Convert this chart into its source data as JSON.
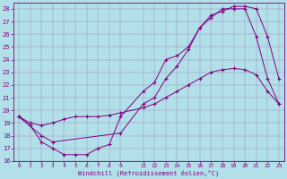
{
  "title": "",
  "xlabel": "Windchill (Refroidissement éolien,°C)",
  "ylabel": "",
  "bg_color": "#b2e0e8",
  "line_color": "#800080",
  "grid_color": "#800080",
  "xlim": [
    -0.5,
    23.5
  ],
  "ylim": [
    16,
    28.5
  ],
  "xticks": [
    0,
    1,
    2,
    3,
    4,
    5,
    6,
    7,
    8,
    9,
    11,
    12,
    13,
    14,
    15,
    16,
    17,
    18,
    19,
    20,
    21,
    22,
    23
  ],
  "yticks": [
    16,
    17,
    18,
    19,
    20,
    21,
    22,
    23,
    24,
    25,
    26,
    27,
    28
  ],
  "series1": [
    [
      0,
      19.5
    ],
    [
      1,
      18.8
    ],
    [
      2,
      17.5
    ],
    [
      3,
      17.0
    ],
    [
      4,
      16.5
    ],
    [
      5,
      16.5
    ],
    [
      6,
      16.5
    ],
    [
      7,
      17.0
    ],
    [
      8,
      17.3
    ],
    [
      9,
      19.5
    ],
    [
      11,
      21.5
    ],
    [
      12,
      22.2
    ],
    [
      13,
      24.0
    ],
    [
      14,
      24.3
    ],
    [
      15,
      25.0
    ],
    [
      16,
      26.5
    ],
    [
      17,
      27.5
    ],
    [
      18,
      27.8
    ],
    [
      19,
      28.2
    ],
    [
      20,
      28.2
    ],
    [
      21,
      28.0
    ],
    [
      22,
      25.8
    ],
    [
      23,
      22.5
    ]
  ],
  "series2": [
    [
      0,
      19.5
    ],
    [
      2,
      18.0
    ],
    [
      3,
      17.5
    ],
    [
      9,
      18.2
    ],
    [
      11,
      20.5
    ],
    [
      12,
      21.0
    ],
    [
      13,
      22.5
    ],
    [
      14,
      23.5
    ],
    [
      15,
      24.8
    ],
    [
      16,
      26.5
    ],
    [
      17,
      27.3
    ],
    [
      18,
      28.0
    ],
    [
      19,
      28.0
    ],
    [
      20,
      28.0
    ],
    [
      21,
      25.8
    ],
    [
      22,
      22.5
    ],
    [
      23,
      20.5
    ]
  ],
  "series3": [
    [
      0,
      19.5
    ],
    [
      1,
      19.0
    ],
    [
      2,
      18.8
    ],
    [
      3,
      19.0
    ],
    [
      4,
      19.3
    ],
    [
      5,
      19.5
    ],
    [
      6,
      19.5
    ],
    [
      7,
      19.5
    ],
    [
      8,
      19.6
    ],
    [
      9,
      19.8
    ],
    [
      11,
      20.2
    ],
    [
      12,
      20.5
    ],
    [
      13,
      21.0
    ],
    [
      14,
      21.5
    ],
    [
      15,
      22.0
    ],
    [
      16,
      22.5
    ],
    [
      17,
      23.0
    ],
    [
      18,
      23.2
    ],
    [
      19,
      23.3
    ],
    [
      20,
      23.2
    ],
    [
      21,
      22.8
    ],
    [
      22,
      21.5
    ],
    [
      23,
      20.5
    ]
  ]
}
